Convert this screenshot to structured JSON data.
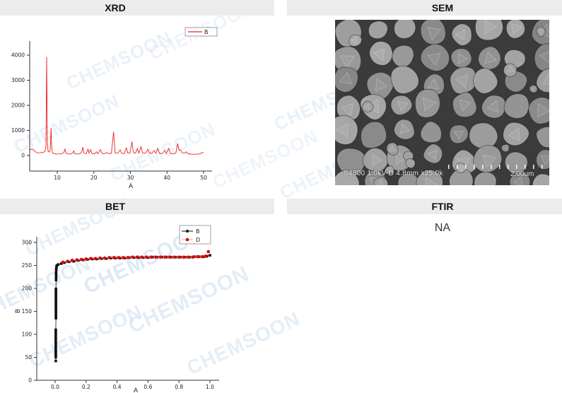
{
  "page": {
    "watermark_text": "CHEMSOON",
    "watermark_color": "#cfe2f2",
    "header_bg": "#ececec"
  },
  "panels": {
    "xrd": {
      "title": "XRD"
    },
    "sem": {
      "title": "SEM",
      "caption": "S4800 1.0kV-D 4.8mm x25.0k",
      "scale_label": "2.00um"
    },
    "bet": {
      "title": "BET"
    },
    "ftir": {
      "title": "FTIR",
      "content": "NA"
    }
  },
  "chart_data": [
    {
      "type": "line",
      "title": "XRD",
      "xlabel": "A",
      "ylabel": "",
      "x_ticks": [
        10,
        20,
        30,
        40,
        50
      ],
      "y_ticks": [
        0,
        1000,
        2000,
        3000,
        4000
      ],
      "xlim": [
        2.5,
        52
      ],
      "ylim": [
        -600,
        4600
      ],
      "grid": false,
      "legend_position": "top-right",
      "series": [
        {
          "name": "B",
          "color": "#f02020",
          "marker": "none",
          "points": [
            [
              2.5,
              230
            ],
            [
              3,
              255
            ],
            [
              3.4,
              245
            ],
            [
              3.8,
              185
            ],
            [
              4.2,
              130
            ],
            [
              4.7,
              105
            ],
            [
              5.2,
              108
            ],
            [
              5.7,
              118
            ],
            [
              6.2,
              130
            ],
            [
              6.6,
              150
            ],
            [
              6.9,
              320
            ],
            [
              7.1,
              3930
            ],
            [
              7.3,
              500
            ],
            [
              7.5,
              160
            ],
            [
              7.9,
              140
            ],
            [
              8.1,
              300
            ],
            [
              8.3,
              1100
            ],
            [
              8.5,
              280
            ],
            [
              8.7,
              100
            ],
            [
              9.2,
              68
            ],
            [
              9.8,
              60
            ],
            [
              10.5,
              62
            ],
            [
              11.2,
              68
            ],
            [
              11.8,
              120
            ],
            [
              12.1,
              250
            ],
            [
              12.4,
              90
            ],
            [
              13,
              62
            ],
            [
              13.7,
              64
            ],
            [
              14.2,
              100
            ],
            [
              14.5,
              180
            ],
            [
              14.8,
              70
            ],
            [
              15.4,
              60
            ],
            [
              16.1,
              65
            ],
            [
              16.7,
              150
            ],
            [
              17,
              330
            ],
            [
              17.3,
              90
            ],
            [
              17.9,
              72
            ],
            [
              18.4,
              250
            ],
            [
              18.7,
              95
            ],
            [
              19.1,
              230
            ],
            [
              19.5,
              75
            ],
            [
              20.2,
              66
            ],
            [
              20.7,
              150
            ],
            [
              21.1,
              68
            ],
            [
              21.8,
              240
            ],
            [
              22.2,
              90
            ],
            [
              22.8,
              70
            ],
            [
              23.5,
              120
            ],
            [
              24.1,
              72
            ],
            [
              24.8,
              95
            ],
            [
              25.4,
              950
            ],
            [
              25.8,
              110
            ],
            [
              26.5,
              82
            ],
            [
              27.2,
              230
            ],
            [
              27.6,
              88
            ],
            [
              28.3,
              82
            ],
            [
              28.9,
              300
            ],
            [
              29.3,
              92
            ],
            [
              29.9,
              105
            ],
            [
              30.4,
              550
            ],
            [
              30.8,
              115
            ],
            [
              31.4,
              92
            ],
            [
              31.9,
              280
            ],
            [
              32.3,
              96
            ],
            [
              32.9,
              350
            ],
            [
              33.3,
              98
            ],
            [
              34.1,
              86
            ],
            [
              34.8,
              250
            ],
            [
              35.2,
              92
            ],
            [
              35.9,
              92
            ],
            [
              36.5,
              200
            ],
            [
              36.9,
              90
            ],
            [
              37.5,
              280
            ],
            [
              37.9,
              86
            ],
            [
              38.7,
              76
            ],
            [
              39.4,
              200
            ],
            [
              39.8,
              82
            ],
            [
              40.5,
              280
            ],
            [
              40.9,
              82
            ],
            [
              41.7,
              72
            ],
            [
              42.4,
              92
            ],
            [
              42.9,
              480
            ],
            [
              43.3,
              210
            ],
            [
              43.7,
              220
            ],
            [
              44.1,
              115
            ],
            [
              44.7,
              92
            ],
            [
              45.3,
              150
            ],
            [
              45.7,
              72
            ],
            [
              46.4,
              56
            ],
            [
              47.1,
              50
            ],
            [
              47.9,
              52
            ],
            [
              48.7,
              62
            ],
            [
              49.3,
              90
            ],
            [
              49.7,
              130
            ],
            [
              50,
              95
            ]
          ]
        }
      ]
    },
    {
      "type": "scatter",
      "title": "BET",
      "xlabel": "A",
      "ylabel": "B",
      "x_ticks": [
        "0.0",
        "0.2",
        "0.4",
        "0.6",
        "0.8",
        "1.0"
      ],
      "y_ticks": [
        0,
        50,
        100,
        150,
        200,
        250,
        300
      ],
      "xlim": [
        -0.05,
        1.08
      ],
      "ylim": [
        0,
        310
      ],
      "grid": false,
      "legend_position": "top-right",
      "series": [
        {
          "name": "B",
          "marker": "square",
          "color": "#111111",
          "line_color": "#111111",
          "points": [
            [
              0.004,
              42
            ],
            [
              0.004,
              50
            ],
            [
              0.004,
              55
            ],
            [
              0.004,
              58
            ],
            [
              0.004,
              61
            ],
            [
              0.004,
              64
            ],
            [
              0.004,
              68
            ],
            [
              0.004,
              72
            ],
            [
              0.004,
              76
            ],
            [
              0.004,
              81
            ],
            [
              0.004,
              86
            ],
            [
              0.004,
              91
            ],
            [
              0.004,
              96
            ],
            [
              0.004,
              101
            ],
            [
              0.004,
              106
            ],
            [
              0.004,
              110
            ],
            [
              0.005,
              135
            ],
            [
              0.005,
              139
            ],
            [
              0.005,
              143
            ],
            [
              0.005,
              147
            ],
            [
              0.005,
              151
            ],
            [
              0.005,
              155
            ],
            [
              0.005,
              159
            ],
            [
              0.005,
              163
            ],
            [
              0.005,
              167
            ],
            [
              0.005,
              171
            ],
            [
              0.005,
              175
            ],
            [
              0.005,
              179
            ],
            [
              0.005,
              183
            ],
            [
              0.005,
              187
            ],
            [
              0.005,
              191
            ],
            [
              0.005,
              195
            ],
            [
              0.005,
              199
            ],
            [
              0.006,
              218
            ],
            [
              0.006,
              222
            ],
            [
              0.006,
              226
            ],
            [
              0.006,
              230
            ],
            [
              0.006,
              234
            ],
            [
              0.007,
              238
            ],
            [
              0.007,
              242
            ],
            [
              0.008,
              245
            ],
            [
              0.009,
              248
            ],
            [
              0.012,
              250
            ],
            [
              0.02,
              252
            ],
            [
              0.04,
              254
            ],
            [
              0.06,
              256
            ],
            [
              0.09,
              258
            ],
            [
              0.12,
              259
            ],
            [
              0.15,
              261
            ],
            [
              0.18,
              262
            ],
            [
              0.21,
              263
            ],
            [
              0.24,
              264
            ],
            [
              0.27,
              264
            ],
            [
              0.3,
              265
            ],
            [
              0.33,
              265
            ],
            [
              0.36,
              266
            ],
            [
              0.39,
              266
            ],
            [
              0.42,
              266
            ],
            [
              0.45,
              266
            ],
            [
              0.48,
              267
            ],
            [
              0.51,
              267
            ],
            [
              0.54,
              267
            ],
            [
              0.57,
              267
            ],
            [
              0.6,
              267
            ],
            [
              0.63,
              268
            ],
            [
              0.66,
              268
            ],
            [
              0.69,
              268
            ],
            [
              0.72,
              268
            ],
            [
              0.75,
              268
            ],
            [
              0.78,
              268
            ],
            [
              0.81,
              268
            ],
            [
              0.84,
              268
            ],
            [
              0.87,
              268
            ],
            [
              0.9,
              269
            ],
            [
              0.93,
              269
            ],
            [
              0.96,
              269
            ],
            [
              0.98,
              270
            ],
            [
              1.0,
              272
            ]
          ]
        },
        {
          "name": "D",
          "marker": "circle",
          "color": "#e00000",
          "line_color": "#f49a9a",
          "points": [
            [
              0.05,
              257
            ],
            [
              0.08,
              259
            ],
            [
              0.11,
              261
            ],
            [
              0.14,
              262
            ],
            [
              0.17,
              263
            ],
            [
              0.2,
              264
            ],
            [
              0.23,
              265
            ],
            [
              0.26,
              265
            ],
            [
              0.29,
              266
            ],
            [
              0.32,
              266
            ],
            [
              0.35,
              267
            ],
            [
              0.38,
              267
            ],
            [
              0.41,
              267
            ],
            [
              0.44,
              267
            ],
            [
              0.47,
              267
            ],
            [
              0.5,
              268
            ],
            [
              0.53,
              268
            ],
            [
              0.56,
              268
            ],
            [
              0.59,
              268
            ],
            [
              0.62,
              268
            ],
            [
              0.65,
              268
            ],
            [
              0.68,
              268
            ],
            [
              0.71,
              268
            ],
            [
              0.74,
              268
            ],
            [
              0.77,
              268
            ],
            [
              0.8,
              268
            ],
            [
              0.83,
              268
            ],
            [
              0.86,
              268
            ],
            [
              0.89,
              268
            ],
            [
              0.92,
              269
            ],
            [
              0.95,
              269
            ],
            [
              0.97,
              270
            ],
            [
              0.99,
              280
            ]
          ]
        }
      ]
    }
  ]
}
